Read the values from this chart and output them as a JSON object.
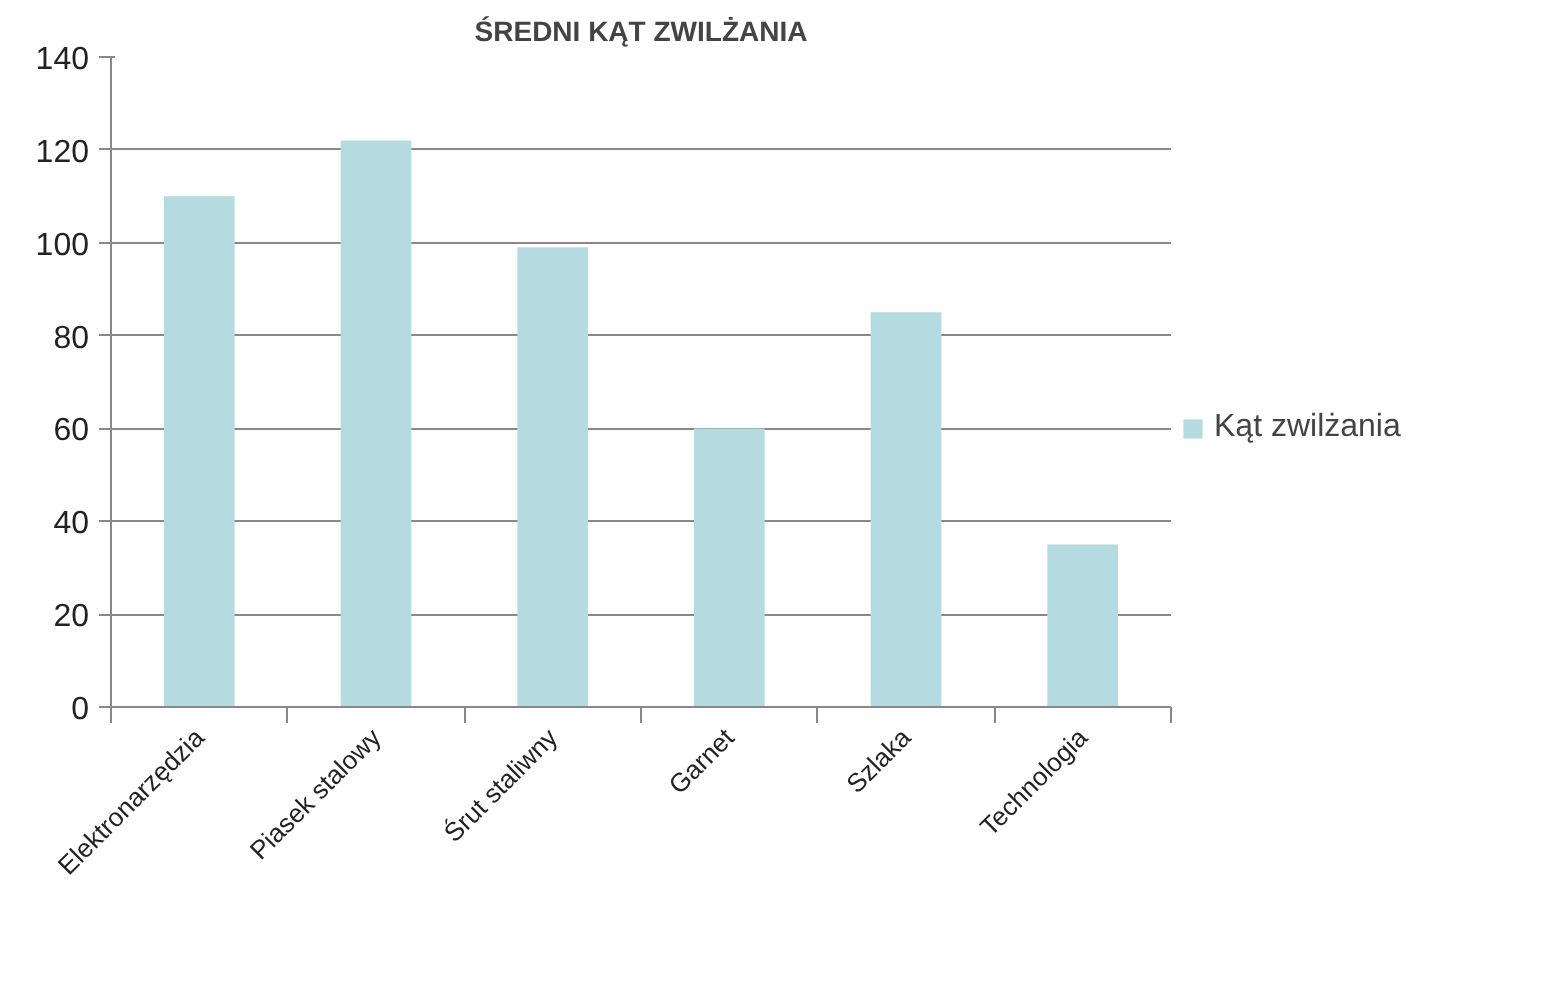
{
  "chart_data": {
    "type": "bar",
    "title": "ŚREDNI KĄT ZWILŻANIA",
    "categories": [
      "Elektronarzędzia",
      "Piasek stalowy",
      "Śrut staliwny",
      "Garnet",
      "Szlaka",
      "Technologia"
    ],
    "series": [
      {
        "name": "Kąt zwilżania",
        "color": "#b3dbe0",
        "values": [
          110,
          122,
          99,
          60,
          85,
          35
        ]
      }
    ],
    "ylim": [
      0,
      140
    ],
    "yticks": [
      0,
      20,
      40,
      60,
      80,
      100,
      120,
      140
    ],
    "grid": "y",
    "legend": "right"
  }
}
